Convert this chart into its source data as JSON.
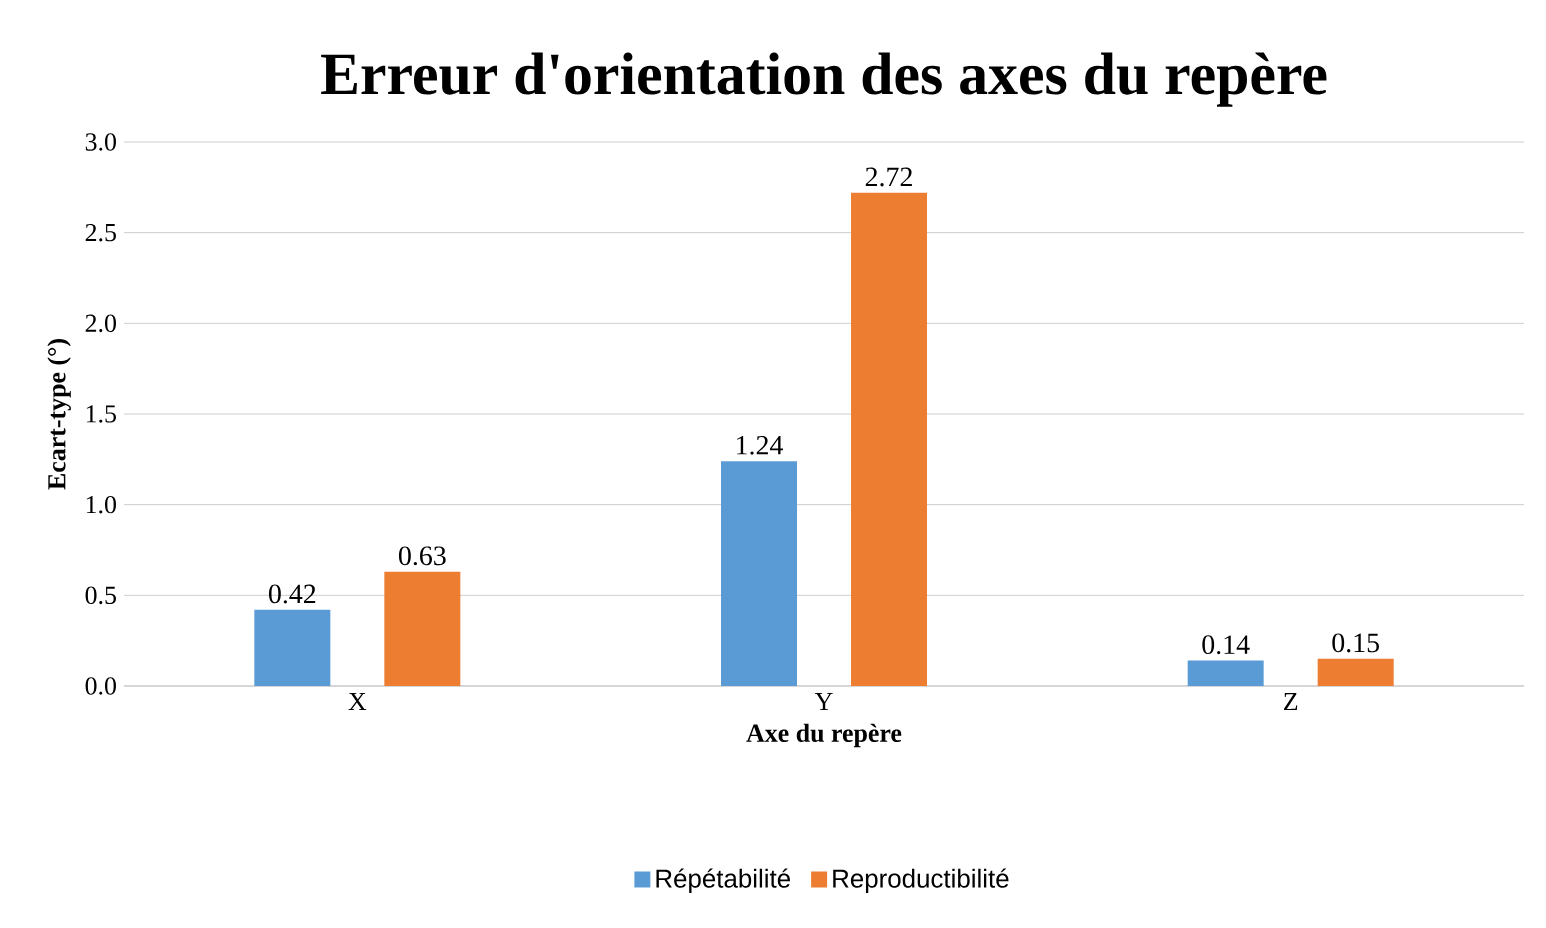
{
  "chart_data": {
    "type": "bar",
    "title": "Erreur d'orientation des axes du repère",
    "xlabel": "Axe du repère",
    "ylabel": "Ecart-type (°)",
    "categories": [
      "X",
      "Y",
      "Z"
    ],
    "series": [
      {
        "name": "Répétabilité",
        "color": "#5b9bd5",
        "values": [
          0.42,
          1.24,
          0.14
        ],
        "value_labels": [
          "0.42",
          "1.24",
          "0.14"
        ]
      },
      {
        "name": "Reproductibilité",
        "color": "#ed7d31",
        "values": [
          0.63,
          2.72,
          0.15
        ],
        "value_labels": [
          "0.63",
          "2.72",
          "0.15"
        ]
      }
    ],
    "ylim": [
      0,
      3
    ],
    "yticks": [
      {
        "value": 0,
        "label": "0.0"
      },
      {
        "value": 0.5,
        "label": "0.5"
      },
      {
        "value": 1,
        "label": "1.0"
      },
      {
        "value": 1.5,
        "label": "1.5"
      },
      {
        "value": 2,
        "label": "2.0"
      },
      {
        "value": 2.5,
        "label": "2.5"
      },
      {
        "value": 3,
        "label": "3.0"
      }
    ],
    "grid": "y",
    "legend": "bottom"
  }
}
